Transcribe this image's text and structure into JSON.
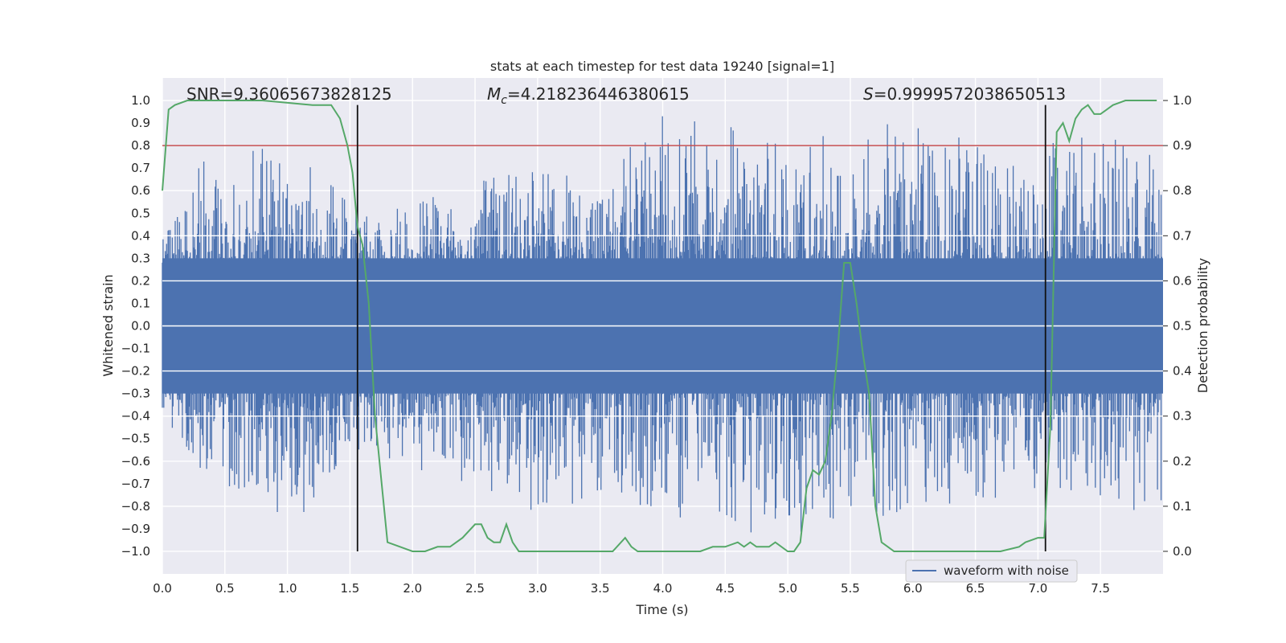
{
  "chart_data": {
    "type": "line",
    "title": "stats at each timestep for test data 19240 [signal=1]",
    "xlabel": "Time (s)",
    "ylabel": "Whitened strain",
    "y2label": "Detection probability",
    "xlim": [
      0.0,
      8.0
    ],
    "ylim": [
      -1.1,
      1.1
    ],
    "y2lim": [
      -0.05,
      1.05
    ],
    "xticks": [
      "0.0",
      "0.5",
      "1.0",
      "1.5",
      "2.0",
      "2.5",
      "3.0",
      "3.5",
      "4.0",
      "4.5",
      "5.0",
      "5.5",
      "6.0",
      "6.5",
      "7.0",
      "7.5"
    ],
    "yticks": [
      "1.0",
      "0.9",
      "0.8",
      "0.7",
      "0.6",
      "0.5",
      "0.4",
      "0.3",
      "0.2",
      "0.1",
      "0.0",
      "−0.1",
      "−0.2",
      "−0.3",
      "−0.4",
      "−0.5",
      "−0.6",
      "−0.7",
      "−0.8",
      "−0.9",
      "−1.0"
    ],
    "y2ticks": [
      "1.0",
      "0.9",
      "0.8",
      "0.7",
      "0.6",
      "0.5",
      "0.4",
      "0.3",
      "0.2",
      "0.1",
      "0.0"
    ],
    "grid": true,
    "legend_position": "lower-right",
    "annotations": {
      "snr": "SNR=9.36065673828125",
      "mc_symbol": "M",
      "mc_sub": "c",
      "mc_value": "=4.218236446380615",
      "s_symbol": "S",
      "s_value": "=0.9999572038650513"
    },
    "threshold": {
      "value": 0.9,
      "axis": "detection_probability",
      "color": "#c44e52"
    },
    "vertical_lines": [
      1.56,
      7.06
    ],
    "series": [
      {
        "name": "waveform with noise",
        "color": "#4c72b0",
        "envelope": {
          "x": [
            0.0,
            0.2,
            0.35,
            0.5,
            0.8,
            1.0,
            1.5,
            2.0,
            2.5,
            3.0,
            3.5,
            4.0,
            4.5,
            5.0,
            5.5,
            6.0,
            6.5,
            7.0,
            7.5,
            7.99
          ],
          "upper": [
            0.45,
            0.52,
            0.89,
            0.55,
            0.9,
            0.8,
            0.6,
            0.55,
            0.65,
            0.7,
            0.65,
            0.95,
            0.9,
            0.85,
            0.85,
            0.93,
            0.85,
            0.8,
            0.85,
            0.8
          ],
          "lower": [
            -0.45,
            -0.6,
            -0.72,
            -0.8,
            -0.75,
            -0.93,
            -0.55,
            -0.65,
            -0.7,
            -0.85,
            -0.75,
            -0.83,
            -0.9,
            -0.95,
            -0.85,
            -0.9,
            -0.8,
            -0.75,
            -0.8,
            -0.88
          ]
        }
      },
      {
        "name": "detection probability",
        "color": "#55a868",
        "x": [
          0.0,
          0.05,
          0.1,
          0.2,
          0.4,
          0.8,
          1.2,
          1.35,
          1.42,
          1.48,
          1.52,
          1.56,
          1.6,
          1.65,
          1.7,
          1.75,
          1.8,
          1.9,
          2.0,
          2.1,
          2.2,
          2.3,
          2.4,
          2.5,
          2.55,
          2.6,
          2.65,
          2.7,
          2.75,
          2.8,
          2.85,
          2.9,
          3.0,
          3.2,
          3.4,
          3.6,
          3.7,
          3.75,
          3.8,
          3.9,
          4.0,
          4.3,
          4.4,
          4.5,
          4.6,
          4.65,
          4.7,
          4.75,
          4.8,
          4.85,
          4.9,
          5.0,
          5.05,
          5.1,
          5.15,
          5.2,
          5.25,
          5.3,
          5.35,
          5.4,
          5.45,
          5.5,
          5.55,
          5.6,
          5.65,
          5.7,
          5.75,
          5.8,
          5.85,
          5.9,
          6.0,
          6.2,
          6.5,
          6.7,
          6.85,
          6.9,
          7.0,
          7.05,
          7.1,
          7.15,
          7.2,
          7.25,
          7.3,
          7.35,
          7.4,
          7.45,
          7.5,
          7.55,
          7.6,
          7.7,
          7.8,
          7.95
        ],
        "y": [
          0.8,
          0.98,
          0.99,
          1.0,
          1.0,
          1.0,
          0.99,
          0.99,
          0.96,
          0.9,
          0.84,
          0.72,
          0.68,
          0.55,
          0.3,
          0.16,
          0.02,
          0.01,
          0.0,
          0.0,
          0.01,
          0.01,
          0.03,
          0.06,
          0.06,
          0.03,
          0.02,
          0.02,
          0.06,
          0.02,
          0.0,
          0.0,
          0.0,
          0.0,
          0.0,
          0.0,
          0.03,
          0.01,
          0.0,
          0.0,
          0.0,
          0.0,
          0.01,
          0.01,
          0.02,
          0.01,
          0.02,
          0.01,
          0.01,
          0.01,
          0.02,
          0.0,
          0.0,
          0.02,
          0.14,
          0.18,
          0.17,
          0.2,
          0.3,
          0.45,
          0.64,
          0.64,
          0.55,
          0.44,
          0.35,
          0.1,
          0.02,
          0.01,
          0.0,
          0.0,
          0.0,
          0.0,
          0.0,
          0.0,
          0.01,
          0.02,
          0.03,
          0.03,
          0.28,
          0.93,
          0.95,
          0.91,
          0.96,
          0.98,
          0.99,
          0.97,
          0.97,
          0.98,
          0.99,
          1.0,
          1.0,
          1.0
        ]
      }
    ]
  }
}
